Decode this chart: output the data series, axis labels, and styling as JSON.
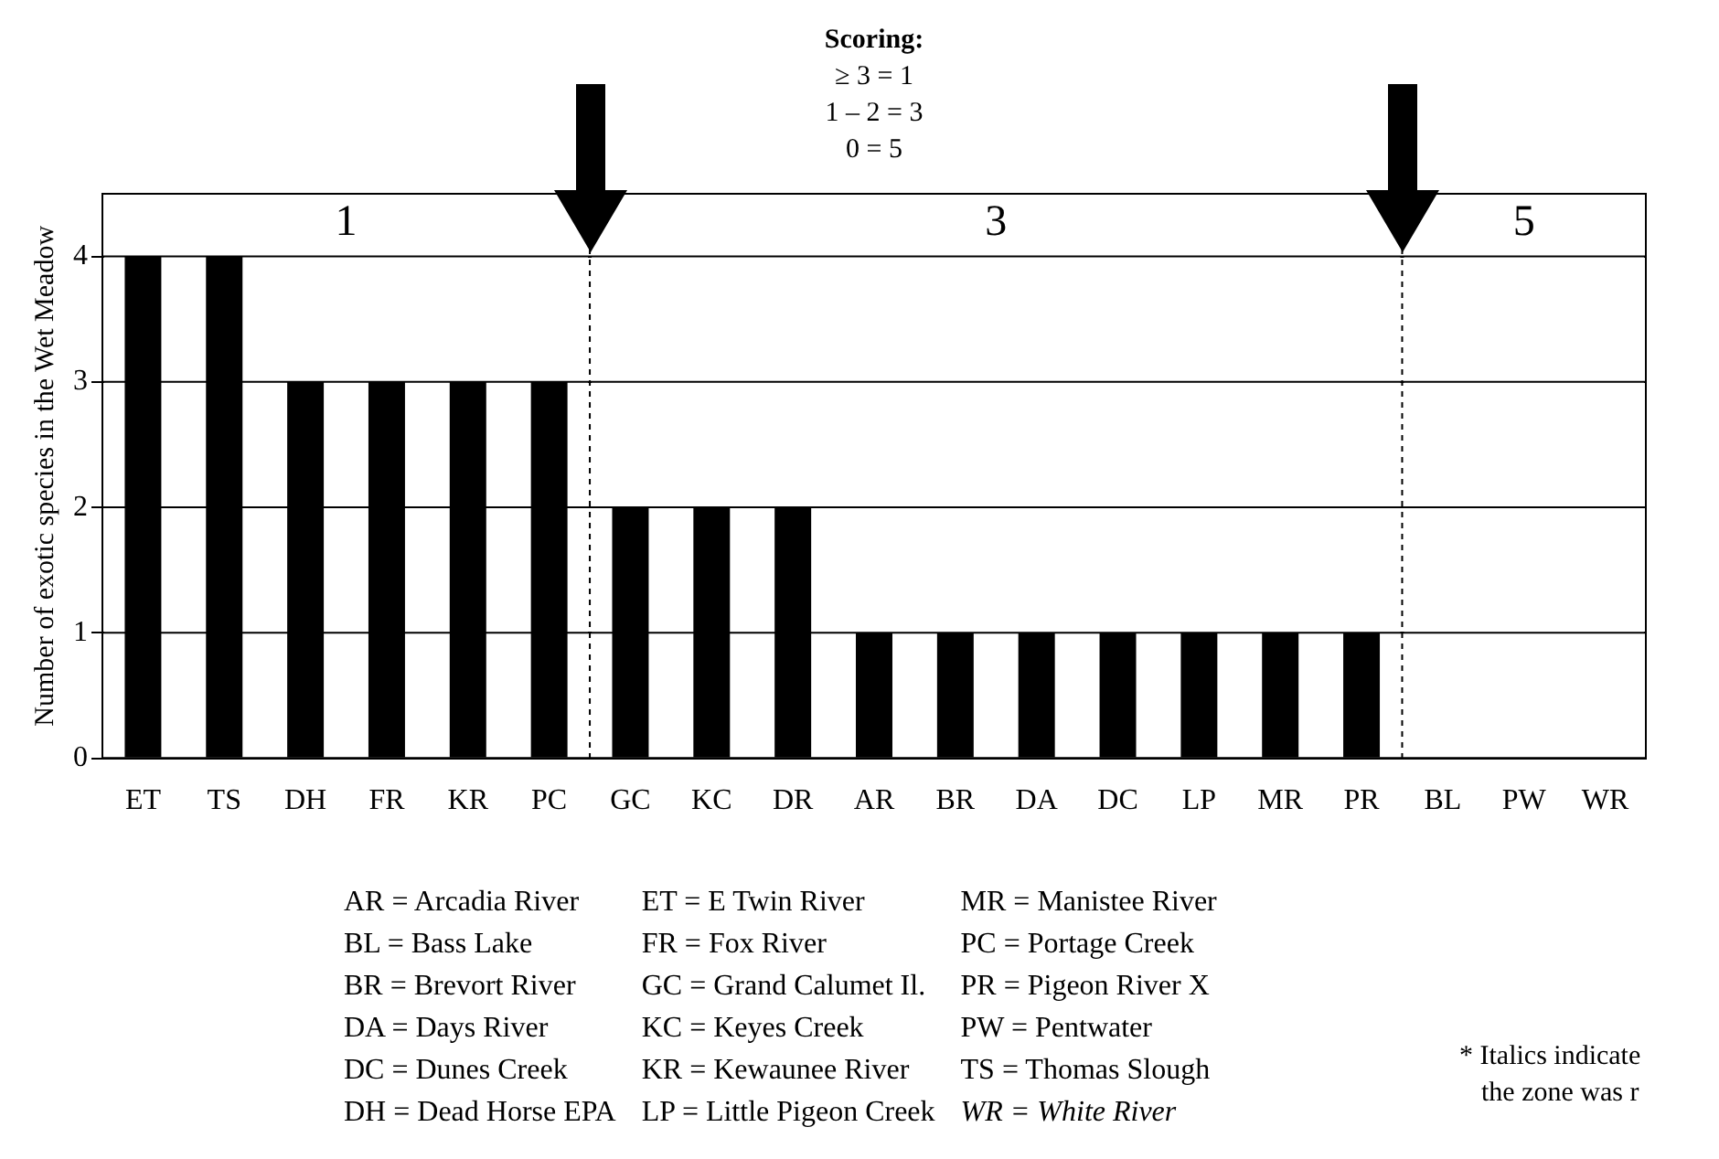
{
  "chart_data": {
    "type": "bar",
    "title": "Scoring:",
    "ylabel": "Number of exotic species in the Wet Meadow",
    "categories": [
      "ET",
      "TS",
      "DH",
      "FR",
      "KR",
      "PC",
      "GC",
      "KC",
      "DR",
      "AR",
      "BR",
      "DA",
      "DC",
      "LP",
      "MR",
      "PR",
      "BL",
      "PW",
      "WR"
    ],
    "values": [
      4,
      4,
      3,
      3,
      3,
      3,
      2,
      2,
      2,
      1,
      1,
      1,
      1,
      1,
      1,
      1,
      0,
      0,
      0
    ],
    "color": "#000000",
    "ylim": [
      0,
      4.5
    ],
    "yticks": [
      0,
      1,
      2,
      3,
      4
    ],
    "grid": "y",
    "bands": [
      {
        "axis": "x",
        "from": "ET",
        "to": "PC",
        "label": "1",
        "color": "#ffffff"
      },
      {
        "axis": "x",
        "from": "GC",
        "to": "PR",
        "label": "3",
        "color": "#ffffff"
      },
      {
        "axis": "x",
        "from": "BL",
        "to": "WR",
        "label": "5",
        "color": "#ffffff"
      }
    ],
    "annotations": [
      "≥ 3 = 1",
      "1 – 2 = 3",
      "0 = 5",
      "AR = Arcadia River",
      "BL = Bass Lake",
      "BR = Brevort River",
      "DA = Days River",
      "DC = Dunes Creek",
      "DH = Dead Horse EPA",
      "ET = E Twin River",
      "FR = Fox River",
      "GC = Grand Calumet Il.",
      "KC = Keyes Creek",
      "KR = Kewaunee River",
      "LP = Little Pigeon Creek",
      "MR = Manistee River",
      "PC = Portage Creek",
      "PR = Pigeon River X",
      "PW = Pentwater",
      "TS = Thomas Slough",
      "WR = White River",
      "* Italics indicate",
      "the zone was r"
    ]
  }
}
